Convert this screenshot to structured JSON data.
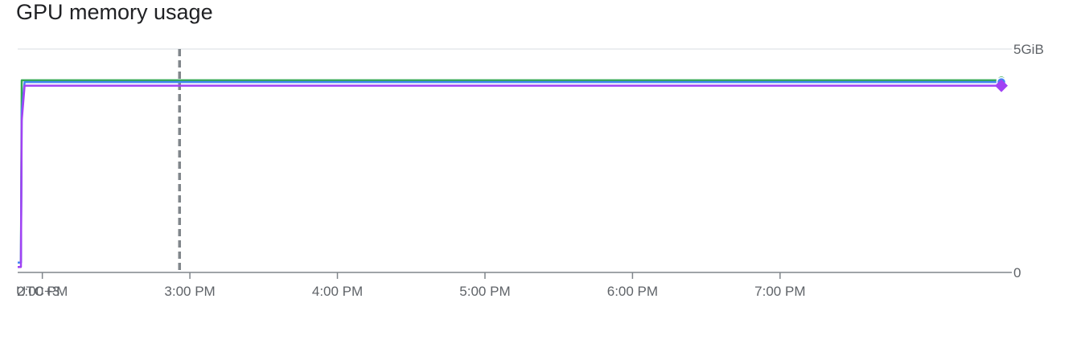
{
  "chart_data": {
    "type": "line",
    "title": "GPU memory usage",
    "x_ticks": [
      "UTC+3",
      "2:00 PM",
      "3:00 PM",
      "4:00 PM",
      "5:00 PM",
      "6:00 PM",
      "7:00 PM"
    ],
    "x_tick_hours": [
      12.833,
      13.0,
      14.0,
      15.0,
      16.0,
      17.0,
      18.0
    ],
    "xlim_hours": [
      12.833,
      19.5
    ],
    "y_ticks": [
      {
        "value": 0,
        "label": "0"
      },
      {
        "value": 5,
        "label": "5GiB"
      }
    ],
    "ylim": [
      0,
      5
    ],
    "y_unit": "GiB",
    "marker_time_hours": 13.93,
    "grid": true,
    "series": [
      {
        "color": "#34a853",
        "points": [
          [
            12.833,
            0.22
          ],
          [
            12.855,
            0.22
          ],
          [
            12.86,
            4.3
          ],
          [
            12.9,
            4.3
          ],
          [
            19.5,
            4.3
          ]
        ]
      },
      {
        "color": "#4285f4",
        "points": [
          [
            12.833,
            0.22
          ],
          [
            12.855,
            0.22
          ],
          [
            12.86,
            3.6
          ],
          [
            12.88,
            4.26
          ],
          [
            19.5,
            4.26
          ]
        ]
      },
      {
        "color": "#a142f4",
        "points": [
          [
            12.833,
            0.12
          ],
          [
            12.855,
            0.12
          ],
          [
            12.86,
            3.4
          ],
          [
            12.88,
            4.18
          ],
          [
            19.5,
            4.18
          ]
        ]
      }
    ],
    "end_markers": [
      {
        "series": 0,
        "shape": "circle"
      },
      {
        "series": 1,
        "shape": "circle"
      },
      {
        "series": 2,
        "shape": "diamond"
      }
    ]
  }
}
